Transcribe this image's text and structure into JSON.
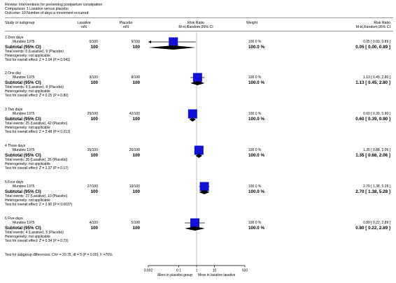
{
  "header": {
    "review": "Review:   Interventions for preventing postpartum constipation",
    "comparison": "Comparison:   1 Laxative versus placebo",
    "outcome": "Outcome:   10 Number of days a movement occurred"
  },
  "columns": {
    "study": "Study or subgroup",
    "lax": "Laxative",
    "lax_sub": "n/N",
    "pla": "Placebo",
    "pla_sub": "n/N",
    "rr": "Risk Ratio",
    "rr_sub": "M-H,Random,95% CI",
    "weight": "Weight",
    "rr2": "Risk Ratio",
    "rr2_sub": "M-H,Random,95% CI"
  },
  "groups": [
    {
      "title": "1 Zero days",
      "study": "Mundow 1975",
      "lax": "0/100",
      "pla": "9/100",
      "weight": "100.0 %",
      "ci": "0.05 [ 0.00, 0.89 ]",
      "subtotal_label": "Subtotal (95% CI)",
      "sub_lax": "100",
      "sub_pla": "100",
      "sub_weight": "100.0 %",
      "sub_ci": "0.05 [ 0.00, 0.89 ]",
      "events": "Total events: 0 (Laxative), 9 (Placebo)",
      "heterogeneity": "Heterogeneity: not applicable",
      "overall": "Test for overall effect: Z = 2.04 (P = 0.041)"
    },
    {
      "title": "2 One day",
      "study": "Mundow 1975",
      "lax": "9/100",
      "pla": "8/100",
      "weight": "100.0 %",
      "ci": "1.13 [ 0.45, 2.80 ]",
      "subtotal_label": "Subtotal (95% CI)",
      "sub_lax": "100",
      "sub_pla": "100",
      "sub_weight": "100.0 %",
      "sub_ci": "1.13 [ 0.45, 2.80 ]",
      "events": "Total events: 9 (Laxative), 8 (Placebo)",
      "heterogeneity": "Heterogeneity: not applicable",
      "overall": "Test for overall effect: Z = 0.25 (P = 0.80)"
    },
    {
      "title": "3 Two days",
      "study": "Mundow 1975",
      "lax": "25/100",
      "pla": "42/100",
      "weight": "100.0 %",
      "ci": "0.60 [ 0.39, 0.90 ]",
      "subtotal_label": "Subtotal (95% CI)",
      "sub_lax": "100",
      "sub_pla": "100",
      "sub_weight": "100.0 %",
      "sub_ci": "0.60 [ 0.39, 0.90 ]",
      "events": "Total events: 25 (Laxative), 42 (Placebo)",
      "heterogeneity": "Heterogeneity: not applicable",
      "overall": "Test for overall effect: Z = 2.48 (P = 0.013)"
    },
    {
      "title": "4 Three days",
      "study": "Mundow 1975",
      "lax": "35/100",
      "pla": "26/100",
      "weight": "100.0 %",
      "ci": "1.35 [ 0.88, 2.06 ]",
      "subtotal_label": "Subtotal (95% CI)",
      "sub_lax": "100",
      "sub_pla": "100",
      "sub_weight": "100.0 %",
      "sub_ci": "1.35 [ 0.88, 2.06 ]",
      "events": "Total events: 35 (Laxative), 26 (Placebo)",
      "heterogeneity": "Heterogeneity: not applicable",
      "overall": "Test for overall effect: Z = 1.37 (P = 0.17)"
    },
    {
      "title": "5 Four days",
      "study": "Mundow 1975",
      "lax": "27/100",
      "pla": "10/100",
      "weight": "100.0 %",
      "ci": "2.70 [ 1.38, 5.28 ]",
      "subtotal_label": "Subtotal (95% CI)",
      "sub_lax": "100",
      "sub_pla": "100",
      "sub_weight": "100.0 %",
      "sub_ci": "2.70 [ 1.38, 5.28 ]",
      "events": "Total events: 27 (Laxative), 10 (Placebo)",
      "heterogeneity": "Heterogeneity: not applicable",
      "overall": "Test for overall effect: Z = 2.90 (P = 0.0037)"
    },
    {
      "title": "6 Five days",
      "study": "Mundow 1975",
      "lax": "4/100",
      "pla": "5/100",
      "weight": "100.0 %",
      "ci": "0.80 [ 0.22, 2.89 ]",
      "subtotal_label": "Subtotal (95% CI)",
      "sub_lax": "100",
      "sub_pla": "100",
      "sub_weight": "100.0 %",
      "sub_ci": "0.80 [ 0.22, 2.89 ]",
      "events": "Total events: 4 (Laxative), 5 (Placebo)",
      "heterogeneity": "Heterogeneity: not applicable",
      "overall": "Test for overall effect: Z = 0.34 (P = 0.73)"
    }
  ],
  "footer": {
    "subgroup_test": "Test for subgroup differences: Chi² = 20.75, df = 5 (P = 0.00), I² =76%"
  },
  "axis": {
    "favours_left": "More in placebo group",
    "favours_right": "More in laxative laxative"
  },
  "chart_data": {
    "type": "forest",
    "scale": "log",
    "xlim": [
      0.002,
      500
    ],
    "ticks": [
      {
        "value": 0.002,
        "label": "0.002"
      },
      {
        "value": 0.1,
        "label": "0.1"
      },
      {
        "value": 1,
        "label": "1"
      },
      {
        "value": 10,
        "label": "10"
      },
      {
        "value": 500,
        "label": "500"
      }
    ],
    "null_line": 1,
    "studies": [
      {
        "group": "1 Zero days",
        "rr": 0.05,
        "lo": 0.0,
        "hi": 0.89,
        "arrow_left": true
      },
      {
        "group": "2 One day",
        "rr": 1.13,
        "lo": 0.45,
        "hi": 2.8
      },
      {
        "group": "3 Two days",
        "rr": 0.6,
        "lo": 0.39,
        "hi": 0.9
      },
      {
        "group": "4 Three days",
        "rr": 1.35,
        "lo": 0.88,
        "hi": 2.06
      },
      {
        "group": "5 Four days",
        "rr": 2.7,
        "lo": 1.38,
        "hi": 5.28
      },
      {
        "group": "6 Five days",
        "rr": 0.8,
        "lo": 0.22,
        "hi": 2.89
      }
    ],
    "subtotals": [
      {
        "group": "1 Zero days",
        "rr": 0.05,
        "lo": 0.0,
        "hi": 0.89
      },
      {
        "group": "2 One day",
        "rr": 1.13,
        "lo": 0.45,
        "hi": 2.8
      },
      {
        "group": "3 Two days",
        "rr": 0.6,
        "lo": 0.39,
        "hi": 0.9
      },
      {
        "group": "4 Three days",
        "rr": 1.35,
        "lo": 0.88,
        "hi": 2.06
      },
      {
        "group": "5 Four days",
        "rr": 2.7,
        "lo": 1.38,
        "hi": 5.28
      },
      {
        "group": "6 Five days",
        "rr": 0.8,
        "lo": 0.22,
        "hi": 2.89
      }
    ],
    "colors": {
      "study_box": "#1010d8",
      "ci_line": "#000000",
      "diamond": "#000000",
      "null_line": "#b0b0b0"
    }
  }
}
